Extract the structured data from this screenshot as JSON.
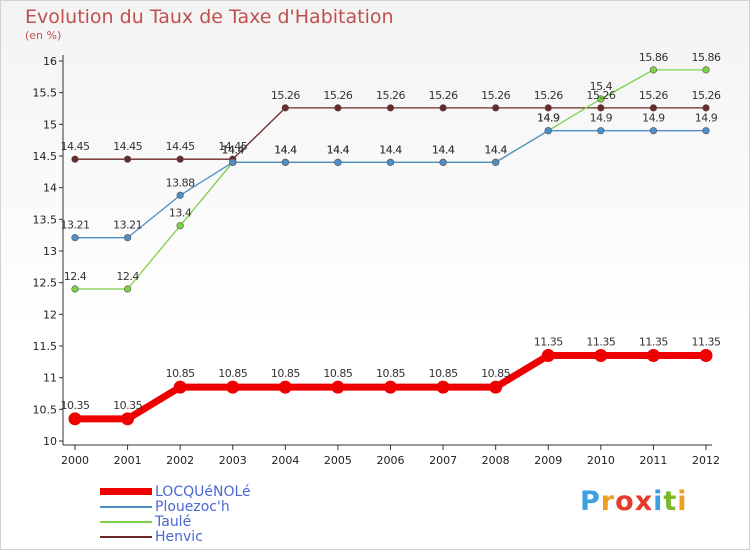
{
  "title": "Evolution du Taux de Taxe d'Habitation",
  "subtitle": "(en %)",
  "brand": {
    "letters": [
      "P",
      "r",
      "o",
      "x",
      "i",
      "t",
      "i"
    ],
    "colors": [
      "#3aa0e0",
      "#f0a020",
      "#e63a2a",
      "#e63a2a",
      "#3aa0e0",
      "#7ab828",
      "#f0a020"
    ]
  },
  "chart_data": {
    "type": "line",
    "title": "Evolution du Taux de Taxe d'Habitation",
    "ylabel": "(en %)",
    "xlabel": "",
    "x": [
      "2000",
      "2001",
      "2002",
      "2003",
      "2004",
      "2005",
      "2006",
      "2007",
      "2008",
      "2009",
      "2010",
      "2011",
      "2012"
    ],
    "ylim": [
      10,
      16
    ],
    "yticks": [
      "10",
      "10.5",
      "11",
      "11.5",
      "12",
      "12.5",
      "13",
      "13.5",
      "14",
      "14.5",
      "15",
      "15.5",
      "16"
    ],
    "grid": false,
    "legend_position": "bottom-left",
    "series": [
      {
        "name": "LOCQUéNOLé",
        "color": "#ee0000",
        "values": [
          10.35,
          10.35,
          10.85,
          10.85,
          10.85,
          10.85,
          10.85,
          10.85,
          10.85,
          11.35,
          11.35,
          11.35,
          11.35
        ],
        "labels": [
          "10.35",
          "10.35",
          "10.85",
          "10.85",
          "10.85",
          "10.85",
          "10.85",
          "10.85",
          "10.85",
          "11.35",
          "11.35",
          "11.35",
          "11.35"
        ]
      },
      {
        "name": "Plouezoc'h",
        "color": "#4f8fc8",
        "values": [
          13.21,
          13.21,
          13.88,
          14.4,
          14.4,
          14.4,
          14.4,
          14.4,
          14.4,
          14.9,
          14.9,
          14.9,
          14.9
        ],
        "labels": [
          "13.21",
          "13.21",
          "13.88",
          "14.4",
          "14.4",
          "14.4",
          "14.4",
          "14.4",
          "14.4",
          "14.9",
          "14.9",
          "14.9",
          "14.9"
        ]
      },
      {
        "name": "Taulé",
        "color": "#7ed048",
        "values": [
          12.4,
          12.4,
          13.4,
          14.4,
          14.4,
          14.4,
          14.4,
          14.4,
          14.4,
          14.9,
          15.4,
          15.86,
          15.86
        ],
        "labels": [
          "12.4",
          "12.4",
          "13.4",
          "14.4",
          "14.4",
          "14.4",
          "14.4",
          "14.4",
          "14.4",
          "14.9",
          "15.4",
          "15.86",
          "15.86"
        ]
      },
      {
        "name": "Henvic",
        "color": "#6b2a2a",
        "values": [
          14.45,
          14.45,
          14.45,
          14.45,
          15.26,
          15.26,
          15.26,
          15.26,
          15.26,
          15.26,
          15.26,
          15.26,
          15.26
        ],
        "labels": [
          "14.45",
          "14.45",
          "14.45",
          "14.45",
          "15.26",
          "15.26",
          "15.26",
          "15.26",
          "15.26",
          "15.26",
          "15.26",
          "15.26",
          "15.26"
        ]
      }
    ]
  }
}
